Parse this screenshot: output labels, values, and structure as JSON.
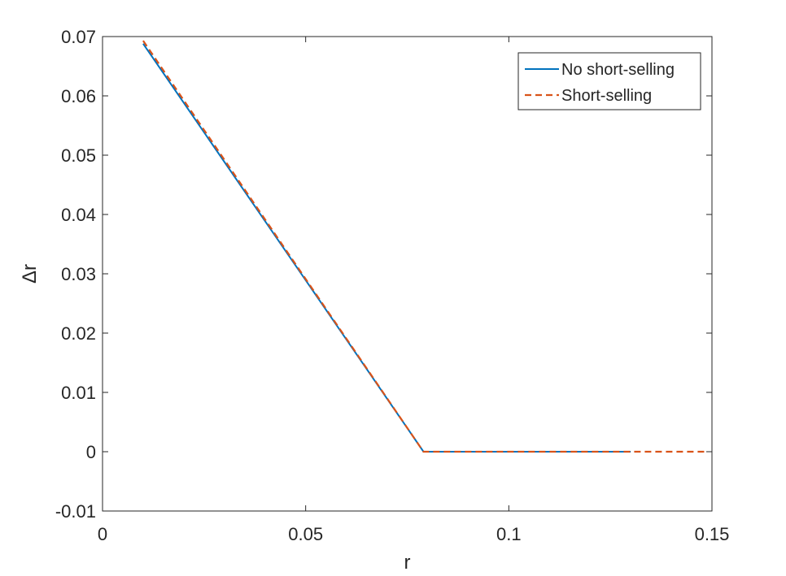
{
  "chart_data": {
    "type": "line",
    "title": "",
    "xlabel": "r",
    "ylabel": "Δr",
    "xlim": [
      0,
      0.15
    ],
    "ylim": [
      -0.01,
      0.07
    ],
    "xticks": [
      0,
      0.05,
      0.1,
      0.15
    ],
    "xtick_labels": [
      "0",
      "0.05",
      "0.1",
      "0.15"
    ],
    "yticks": [
      -0.01,
      0,
      0.01,
      0.02,
      0.03,
      0.04,
      0.05,
      0.06,
      0.07
    ],
    "ytick_labels": [
      "-0.01",
      "0",
      "0.01",
      "0.02",
      "0.03",
      "0.04",
      "0.05",
      "0.06",
      "0.07"
    ],
    "grid": false,
    "legend_position": "top-right",
    "series": [
      {
        "name": "No short-selling",
        "style": "solid",
        "color": "#0072BD",
        "x": [
          0.01,
          0.079,
          0.13
        ],
        "y": [
          0.0688,
          0.0,
          0.0
        ]
      },
      {
        "name": "Short-selling",
        "style": "dashed",
        "color": "#D95319",
        "x": [
          0.01,
          0.079,
          0.149
        ],
        "y": [
          0.0693,
          0.0,
          0.0
        ]
      }
    ]
  }
}
